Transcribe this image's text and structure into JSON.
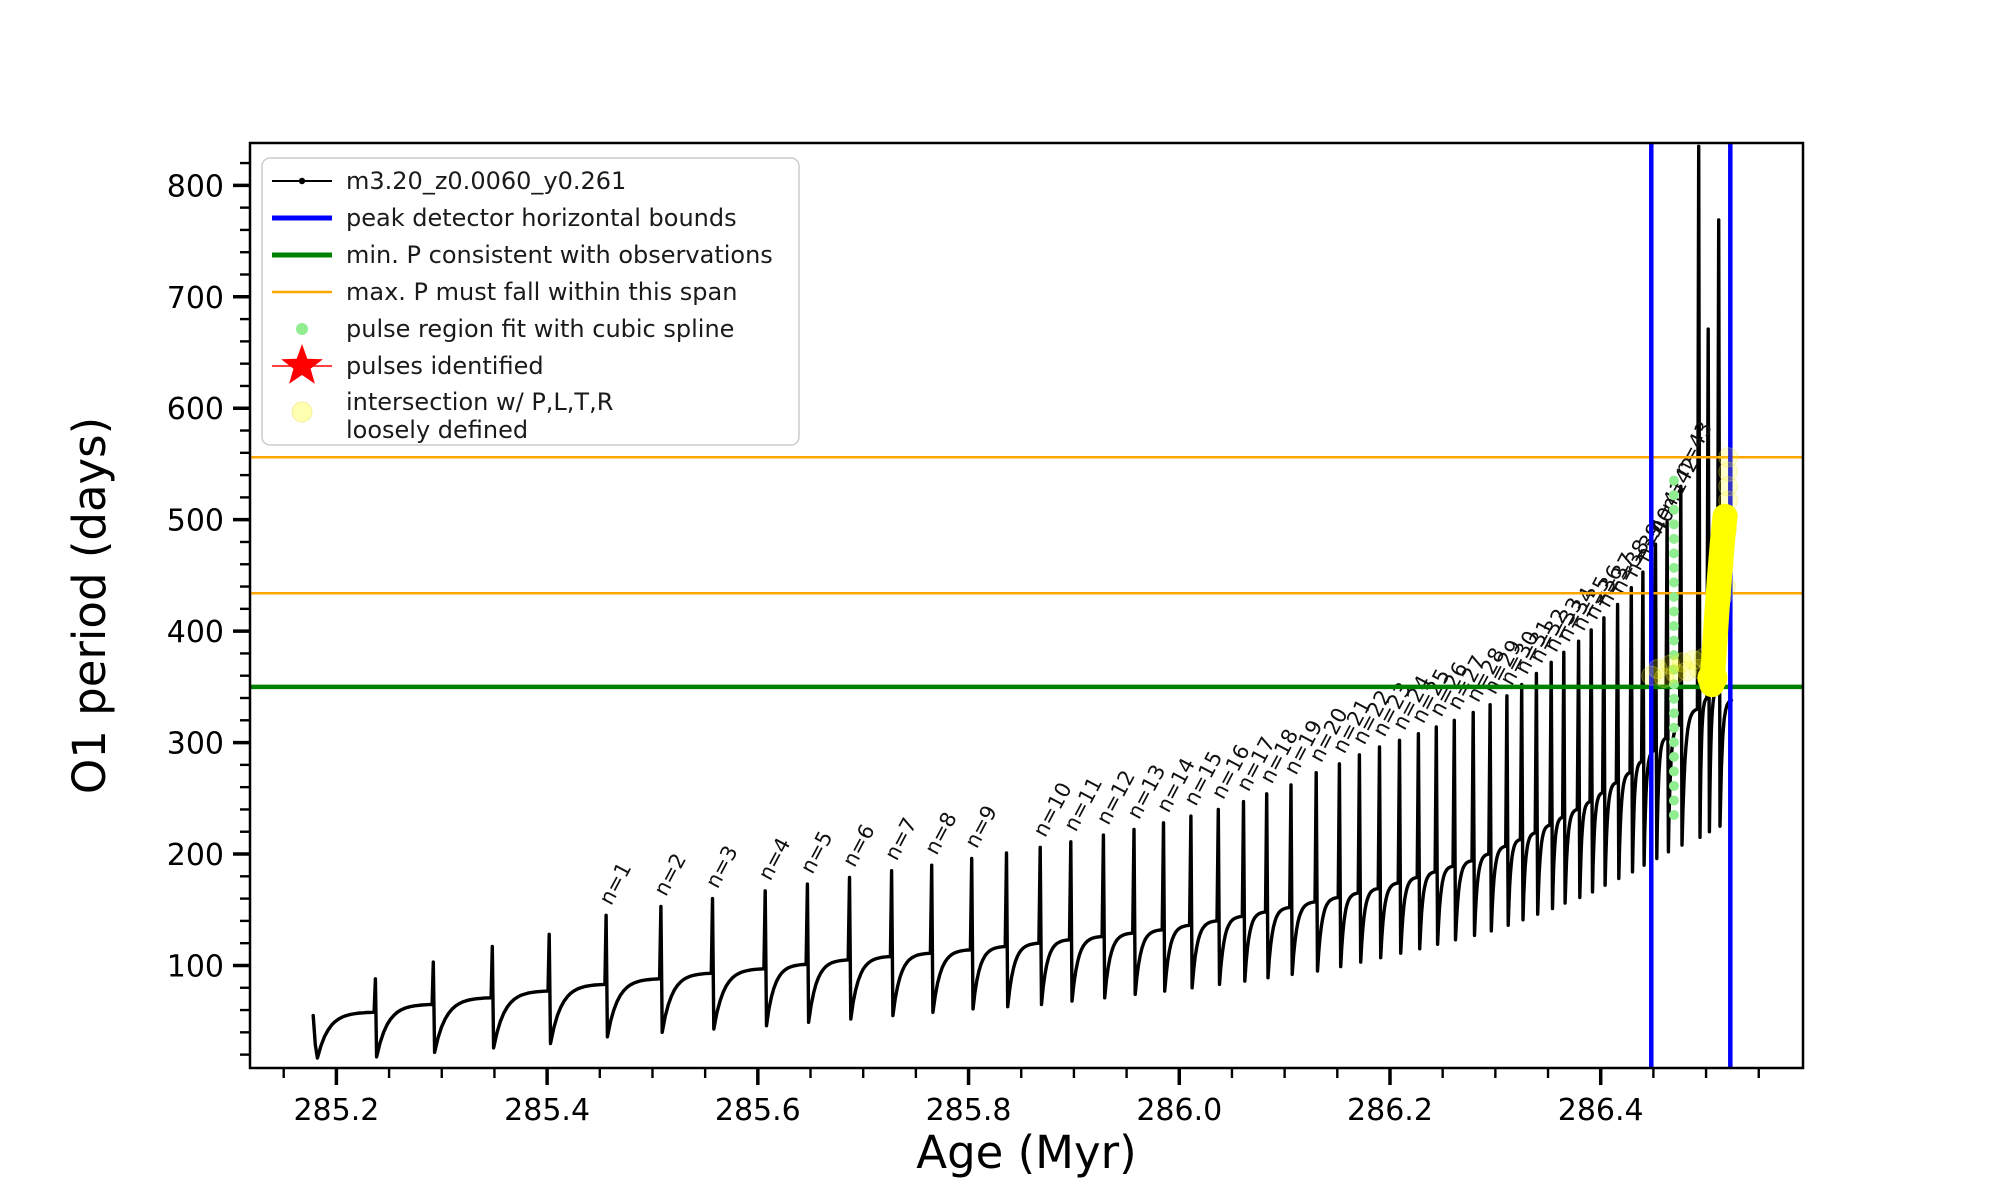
{
  "figure": {
    "background": "#ffffff"
  },
  "chart_data": {
    "type": "line",
    "title": "",
    "xlabel": "Age (Myr)",
    "ylabel": "O1 period (days)",
    "xlim": [
      285.118,
      286.592
    ],
    "ylim": [
      8,
      838
    ],
    "x_major_ticks": [
      285.2,
      285.4,
      285.6,
      285.8,
      286.0,
      286.2,
      286.4
    ],
    "x_minor_step": 0.05,
    "y_major_ticks": [
      100,
      200,
      300,
      400,
      500,
      600,
      700,
      800
    ],
    "y_minor_step": 20,
    "grid": false,
    "series_label": "m3.20_z0.0060_y0.261",
    "series_color": "#000000",
    "curve_start": {
      "age": 285.178,
      "value": 55,
      "dip": 17
    },
    "curve_end": {
      "age": 286.524,
      "value": 338
    },
    "pulses": [
      {
        "age": 285.237,
        "base": 58,
        "peak": 88,
        "dip": 18,
        "label": null
      },
      {
        "age": 285.292,
        "base": 65,
        "peak": 103,
        "dip": 22,
        "label": null
      },
      {
        "age": 285.348,
        "base": 71,
        "peak": 117,
        "dip": 26,
        "label": null
      },
      {
        "age": 285.402,
        "base": 77,
        "peak": 128,
        "dip": 30,
        "label": null
      },
      {
        "age": 285.456,
        "base": 83,
        "peak": 145,
        "dip": 36,
        "label": "n=1"
      },
      {
        "age": 285.508,
        "base": 88,
        "peak": 153,
        "dip": 40,
        "label": "n=2"
      },
      {
        "age": 285.557,
        "base": 93,
        "peak": 160,
        "dip": 43,
        "label": "n=3"
      },
      {
        "age": 285.607,
        "base": 97,
        "peak": 167,
        "dip": 46,
        "label": "n=4"
      },
      {
        "age": 285.647,
        "base": 101,
        "peak": 173,
        "dip": 49,
        "label": "n=5"
      },
      {
        "age": 285.687,
        "base": 105,
        "peak": 179,
        "dip": 52,
        "label": "n=6"
      },
      {
        "age": 285.727,
        "base": 108,
        "peak": 185,
        "dip": 55,
        "label": "n=7"
      },
      {
        "age": 285.765,
        "base": 111,
        "peak": 190,
        "dip": 58,
        "label": "n=8"
      },
      {
        "age": 285.803,
        "base": 114,
        "peak": 196,
        "dip": 61,
        "label": "n=9"
      },
      {
        "age": 285.836,
        "base": 117,
        "peak": 201,
        "dip": 63,
        "label": null
      },
      {
        "age": 285.868,
        "base": 120,
        "peak": 206,
        "dip": 65,
        "label": "n=10"
      },
      {
        "age": 285.897,
        "base": 123,
        "peak": 211,
        "dip": 68,
        "label": "n=11"
      },
      {
        "age": 285.928,
        "base": 126,
        "peak": 217,
        "dip": 71,
        "label": "n=12"
      },
      {
        "age": 285.957,
        "base": 129,
        "peak": 222,
        "dip": 74,
        "label": "n=13"
      },
      {
        "age": 285.985,
        "base": 132,
        "peak": 228,
        "dip": 77,
        "label": "n=14"
      },
      {
        "age": 286.011,
        "base": 136,
        "peak": 234,
        "dip": 80,
        "label": "n=15"
      },
      {
        "age": 286.037,
        "base": 140,
        "peak": 240,
        "dip": 83,
        "label": "n=16"
      },
      {
        "age": 286.061,
        "base": 144,
        "peak": 247,
        "dip": 86,
        "label": "n=17"
      },
      {
        "age": 286.083,
        "base": 148,
        "peak": 254,
        "dip": 89,
        "label": "n=18"
      },
      {
        "age": 286.106,
        "base": 152,
        "peak": 262,
        "dip": 92,
        "label": "n=19"
      },
      {
        "age": 286.13,
        "base": 157,
        "peak": 273,
        "dip": 95,
        "label": "n=20"
      },
      {
        "age": 286.152,
        "base": 161,
        "peak": 281,
        "dip": 99,
        "label": "n=21"
      },
      {
        "age": 286.171,
        "base": 165,
        "peak": 289,
        "dip": 103,
        "label": "n=22"
      },
      {
        "age": 286.19,
        "base": 169,
        "peak": 296,
        "dip": 107,
        "label": "n=23"
      },
      {
        "age": 286.209,
        "base": 174,
        "peak": 302,
        "dip": 111,
        "label": "n=24"
      },
      {
        "age": 286.227,
        "base": 179,
        "peak": 308,
        "dip": 115,
        "label": "n=25"
      },
      {
        "age": 286.244,
        "base": 184,
        "peak": 314,
        "dip": 119,
        "label": "n=26"
      },
      {
        "age": 286.261,
        "base": 189,
        "peak": 320,
        "dip": 123,
        "label": "n=27"
      },
      {
        "age": 286.279,
        "base": 194,
        "peak": 327,
        "dip": 127,
        "label": "n=28"
      },
      {
        "age": 286.295,
        "base": 200,
        "peak": 334,
        "dip": 131,
        "label": "n=29"
      },
      {
        "age": 286.311,
        "base": 207,
        "peak": 342,
        "dip": 136,
        "label": "n=30"
      },
      {
        "age": 286.325,
        "base": 213,
        "peak": 352,
        "dip": 141,
        "label": "n=31"
      },
      {
        "age": 286.339,
        "base": 219,
        "peak": 362,
        "dip": 146,
        "label": "n=32"
      },
      {
        "age": 286.353,
        "base": 226,
        "peak": 372,
        "dip": 151,
        "label": "n=33"
      },
      {
        "age": 286.365,
        "base": 233,
        "peak": 381,
        "dip": 156,
        "label": "n=34"
      },
      {
        "age": 286.379,
        "base": 240,
        "peak": 391,
        "dip": 161,
        "label": "n=35"
      },
      {
        "age": 286.391,
        "base": 247,
        "peak": 401,
        "dip": 166,
        "label": "n=36"
      },
      {
        "age": 286.403,
        "base": 255,
        "peak": 412,
        "dip": 172,
        "label": "n=37"
      },
      {
        "age": 286.416,
        "base": 264,
        "peak": 424,
        "dip": 178,
        "label": "n=38"
      },
      {
        "age": 286.429,
        "base": 273,
        "peak": 439,
        "dip": 184,
        "label": "n=39"
      },
      {
        "age": 286.44,
        "base": 283,
        "peak": 453,
        "dip": 190,
        "label": "n=40"
      },
      {
        "age": 286.452,
        "base": 293,
        "peak": 478,
        "dip": 196,
        "label": "n=41"
      },
      {
        "age": 286.463,
        "base": 304,
        "peak": 498,
        "dip": 202,
        "label": "n=42"
      },
      {
        "age": 286.476,
        "base": 316,
        "peak": 530,
        "dip": 208,
        "label": "n=43"
      },
      {
        "age": 286.493,
        "base": 330,
        "peak": 835,
        "dip": 215,
        "label": null
      },
      {
        "age": 286.502,
        "base": 340,
        "peak": 671,
        "dip": 220,
        "label": null
      },
      {
        "age": 286.512,
        "base": 348,
        "peak": 769,
        "dip": 225,
        "label": null
      }
    ],
    "h_lines": [
      {
        "value": 556,
        "color": "#ffa500",
        "width": 2.5,
        "name": "max-P-span-upper"
      },
      {
        "value": 434,
        "color": "#ffa500",
        "width": 2.5,
        "name": "max-P-span-lower"
      },
      {
        "value": 350,
        "color": "#008000",
        "width": 4.5,
        "name": "min-P-observed"
      }
    ],
    "v_lines": [
      {
        "age": 286.448,
        "color": "#0000ff",
        "width": 4.5,
        "name": "peak-detector-left"
      },
      {
        "age": 286.523,
        "color": "#0000ff",
        "width": 4.5,
        "name": "peak-detector-right"
      }
    ],
    "spline_dots": {
      "age": 286.4695,
      "value_min": 235,
      "value_max": 535,
      "count": 24,
      "color": "#90ee90",
      "radius": 5
    },
    "yellow_blob": {
      "color": "#ffff00",
      "width": 25,
      "path": [
        [
          286.5055,
          352
        ],
        [
          286.508,
          385
        ],
        [
          286.5105,
          420
        ],
        [
          286.513,
          452
        ],
        [
          286.5155,
          480
        ],
        [
          286.518,
          503
        ]
      ]
    },
    "yellow_scatter": {
      "color": "#ffff00",
      "opacity": 0.2,
      "radius": 9.5,
      "points": [
        [
          286.448,
          360
        ],
        [
          286.454,
          366
        ],
        [
          286.46,
          358
        ],
        [
          286.466,
          370
        ],
        [
          286.471,
          362
        ],
        [
          286.477,
          372
        ],
        [
          286.482,
          364
        ],
        [
          286.488,
          374
        ],
        [
          286.493,
          366
        ],
        [
          286.498,
          376
        ],
        [
          286.503,
          368
        ],
        [
          286.507,
          378
        ],
        [
          286.506,
          395
        ],
        [
          286.508,
          410
        ],
        [
          286.51,
          425
        ],
        [
          286.512,
          440
        ],
        [
          286.514,
          455
        ],
        [
          286.516,
          470
        ],
        [
          286.518,
          485
        ],
        [
          286.519,
          440
        ],
        [
          286.521,
          556
        ],
        [
          286.521,
          543
        ],
        [
          286.521,
          530
        ],
        [
          286.521,
          517
        ],
        [
          286.521,
          504
        ],
        [
          286.52,
          491
        ],
        [
          286.517,
          460
        ],
        [
          286.515,
          430
        ],
        [
          286.511,
          400
        ],
        [
          286.509,
          390
        ]
      ]
    },
    "legend": {
      "entries": [
        {
          "type": "line-dot",
          "color": "#000000",
          "label": "m3.20_z0.0060_y0.261"
        },
        {
          "type": "line",
          "color": "#0000ff",
          "lw": 5,
          "label": "peak detector horizontal bounds"
        },
        {
          "type": "line",
          "color": "#008000",
          "lw": 5,
          "label": "min. P consistent with observations"
        },
        {
          "type": "line",
          "color": "#ffa500",
          "lw": 2.5,
          "label": "max. P must fall within this span"
        },
        {
          "type": "dot",
          "color": "#90ee90",
          "r": 6,
          "label": "pulse region fit with cubic spline"
        },
        {
          "type": "star",
          "color": "#ff0000",
          "label": "pulses identified"
        },
        {
          "type": "big-dot",
          "color": "#ffff00",
          "r": 10,
          "label": "intersection w/ P,L,T,R",
          "label2": "loosely defined"
        }
      ]
    }
  }
}
